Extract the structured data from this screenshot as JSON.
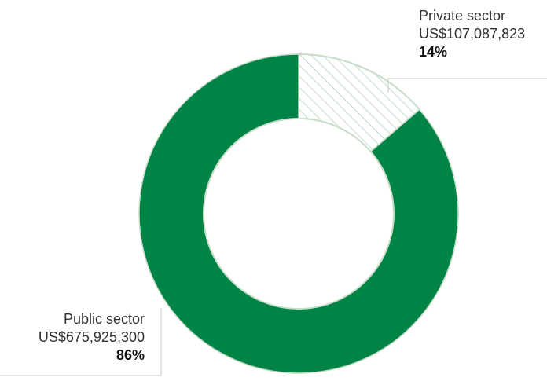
{
  "chart_data": {
    "type": "pie",
    "title": "",
    "slices": [
      {
        "name": "Private sector",
        "value": 107087823,
        "value_label": "US$107,087,823",
        "percent_label": "14%",
        "color": "#ffffff",
        "hatch_color": "#c7dcc9"
      },
      {
        "name": "Public sector",
        "value": 675925300,
        "value_label": "US$675,925,300",
        "percent_label": "86%",
        "color": "#008445"
      }
    ],
    "donut": true,
    "legend": "callout-labels"
  }
}
